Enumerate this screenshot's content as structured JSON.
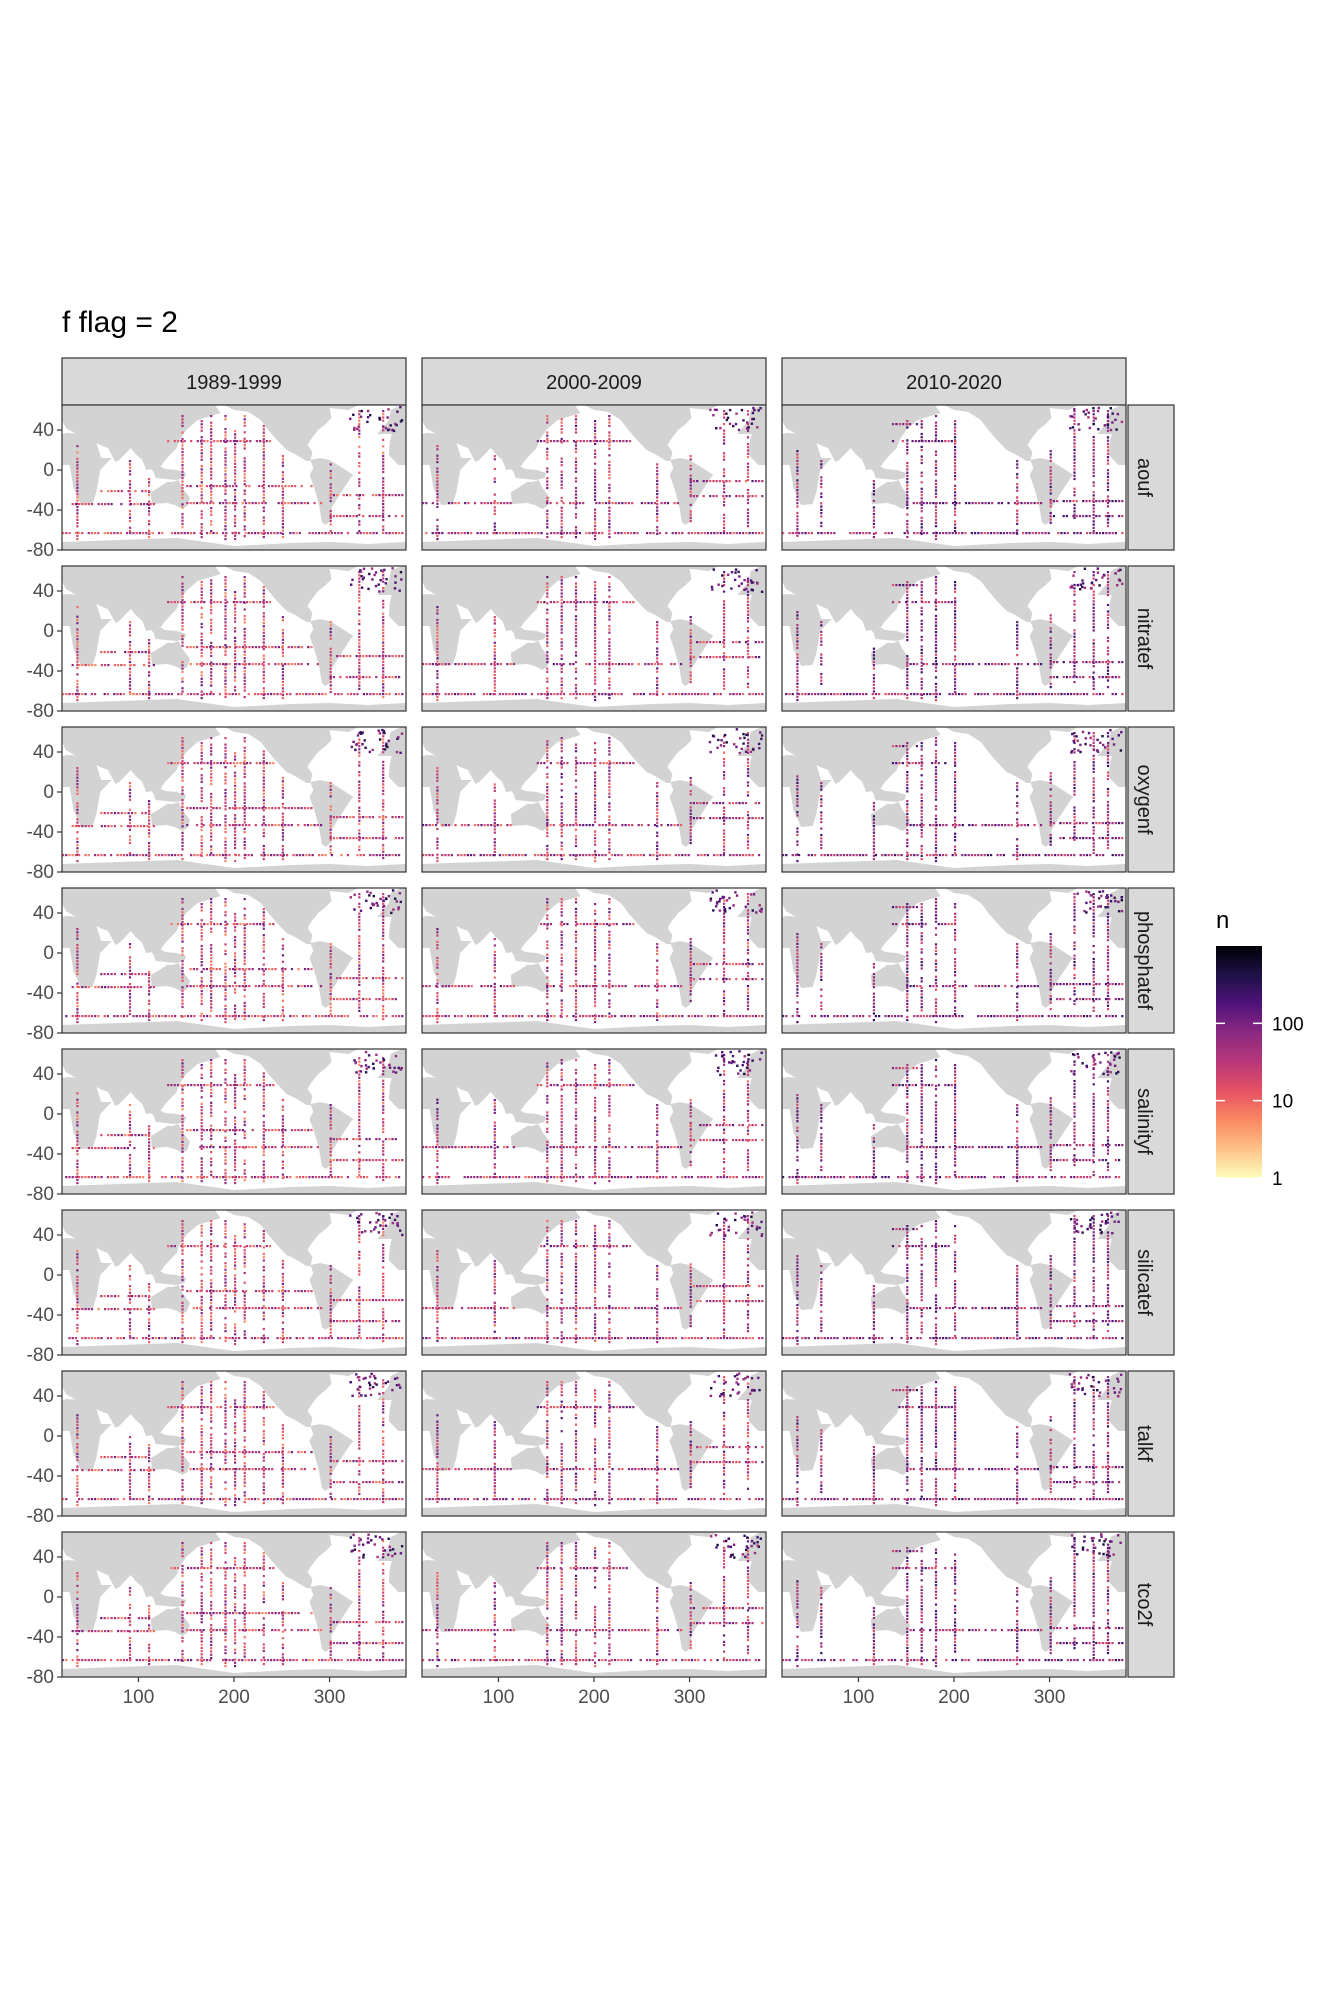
{
  "chart_data": {
    "type": "heatmap",
    "title": "f flag = 2",
    "columns": [
      "1989-1999",
      "2000-2009",
      "2010-2020"
    ],
    "rows": [
      "aouf",
      "nitratef",
      "oxygenf",
      "phosphatef",
      "salinityf",
      "silicatef",
      "talkf",
      "tco2f"
    ],
    "x_ticks": [
      "100",
      "200",
      "300"
    ],
    "x_tick_values": [
      100,
      200,
      300
    ],
    "y_ticks": [
      "40",
      "0",
      "-40",
      "-80"
    ],
    "y_tick_values": [
      40,
      0,
      -40,
      -80
    ],
    "xlim": [
      20,
      380
    ],
    "ylim": [
      -80,
      65
    ],
    "legend": {
      "title": "n",
      "scale": "log10",
      "ticks": [
        "100",
        "10",
        "1"
      ],
      "tick_values": [
        100,
        10,
        1
      ],
      "range": [
        1,
        1000
      ],
      "palette": [
        "#fcfdbf",
        "#fec287",
        "#fb8861",
        "#e65164",
        "#b73779",
        "#8c2981",
        "#51127c",
        "#1d1147",
        "#000004"
      ]
    },
    "colors": {
      "land": "#d3d3d3",
      "ocean": "#ffffff",
      "strip_bg": "#d9d9d9",
      "panel_border": "#333333"
    }
  }
}
